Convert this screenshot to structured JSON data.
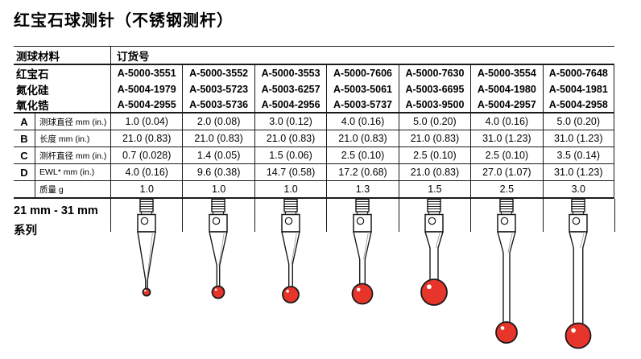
{
  "title": "红宝石球测针（不锈钢测杆）",
  "table": {
    "header": {
      "material": "测球材料",
      "order_no": "订货号"
    },
    "material_rows": [
      {
        "label": "红宝石",
        "values": [
          "A-5000-3551",
          "A-5000-3552",
          "A-5000-3553",
          "A-5000-7606",
          "A-5000-7630",
          "A-5000-3554",
          "A-5000-7648"
        ]
      },
      {
        "label": "氮化硅",
        "values": [
          "A-5004-1979",
          "A-5003-5723",
          "A-5003-6257",
          "A-5003-5061",
          "A-5003-6695",
          "A-5004-1980",
          "A-5004-1981"
        ]
      },
      {
        "label": "氧化锆",
        "values": [
          "A-5004-2955",
          "A-5003-5736",
          "A-5004-2956",
          "A-5003-5737",
          "A-5003-9500",
          "A-5004-2957",
          "A-5004-2958"
        ]
      }
    ],
    "dimension_rows": [
      {
        "letter": "A",
        "label": "测球直径 mm (in.)",
        "values": [
          "1.0 (0.04)",
          "2.0 (0.08)",
          "3.0 (0.12)",
          "4.0 (0.16)",
          "5.0 (0.20)",
          "4.0 (0.16)",
          "5.0 (0.20)"
        ]
      },
      {
        "letter": "B",
        "label": "长度 mm (in.)",
        "values": [
          "21.0 (0.83)",
          "21.0 (0.83)",
          "21.0 (0.83)",
          "21.0 (0.83)",
          "21.0 (0.83)",
          "31.0 (1.23)",
          "31.0 (1.23)"
        ]
      },
      {
        "letter": "C",
        "label": "测杆直径 mm (in.)",
        "values": [
          "0.7 (0.028)",
          "1.4 (0.05)",
          "1.5 (0.06)",
          "2.5 (0.10)",
          "2.5 (0.10)",
          "2.5 (0.10)",
          "3.5 (0.14)"
        ]
      },
      {
        "letter": "D",
        "label": "EWL* mm (in.)",
        "values": [
          "4.0 (0.16)",
          "9.6 (0.38)",
          "14.7 (0.58)",
          "17.2 (0.68)",
          "21.0 (0.83)",
          "27.0 (1.07)",
          "31.0 (1.23)"
        ]
      },
      {
        "letter": "",
        "label": "质量 g",
        "values": [
          "1.0",
          "1.0",
          "1.0",
          "1.3",
          "1.5",
          "2.5",
          "3.0"
        ]
      }
    ],
    "series_label_line1": "21 mm - 31 mm",
    "series_label_line2": "系列"
  },
  "colors": {
    "ruby_ball": "#e8352c",
    "line": "#1a1a1a"
  }
}
